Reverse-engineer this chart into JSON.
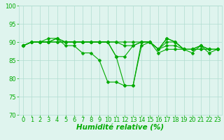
{
  "series": [
    {
      "x": [
        0,
        1,
        2,
        3,
        4,
        5,
        6,
        7,
        8,
        9,
        10,
        11,
        12,
        13,
        14,
        15,
        16,
        17,
        18,
        19,
        20,
        21,
        22,
        23
      ],
      "y": [
        89,
        90,
        90,
        91,
        91,
        89,
        89,
        87,
        87,
        85,
        79,
        79,
        78,
        78,
        89,
        90,
        87,
        88,
        88,
        88,
        88,
        88,
        88,
        88
      ]
    },
    {
      "x": [
        0,
        1,
        2,
        3,
        4,
        5,
        6,
        7,
        8,
        9,
        10,
        11,
        12,
        13,
        14,
        15,
        16,
        17,
        18,
        19,
        20,
        21,
        22,
        23
      ],
      "y": [
        89,
        90,
        90,
        90,
        90,
        90,
        90,
        90,
        90,
        90,
        90,
        86,
        86,
        89,
        90,
        90,
        88,
        91,
        90,
        88,
        88,
        88,
        88,
        88
      ]
    },
    {
      "x": [
        0,
        1,
        2,
        3,
        4,
        5,
        6,
        7,
        8,
        9,
        10,
        11,
        12,
        13,
        14,
        15,
        16,
        17,
        18,
        19,
        20,
        21,
        22,
        23
      ],
      "y": [
        89,
        90,
        90,
        90,
        91,
        90,
        90,
        90,
        90,
        90,
        90,
        90,
        89,
        89,
        90,
        90,
        88,
        90,
        90,
        88,
        87,
        89,
        88,
        88
      ]
    },
    {
      "x": [
        0,
        1,
        2,
        3,
        4,
        5,
        6,
        7,
        8,
        9,
        10,
        11,
        12,
        13,
        14,
        15,
        16,
        17,
        18,
        19,
        20,
        21,
        22,
        23
      ],
      "y": [
        89,
        90,
        90,
        90,
        90,
        90,
        90,
        90,
        90,
        90,
        90,
        90,
        90,
        90,
        90,
        90,
        88,
        89,
        89,
        88,
        88,
        89,
        87,
        88
      ]
    },
    {
      "x": [
        0,
        1,
        2,
        3,
        4,
        5,
        6,
        7,
        8,
        9,
        10,
        11,
        12,
        13,
        14,
        15,
        16,
        17,
        18,
        19,
        20,
        21,
        22,
        23
      ],
      "y": [
        89,
        90,
        90,
        90,
        91,
        90,
        90,
        90,
        90,
        90,
        90,
        86,
        78,
        78,
        90,
        90,
        88,
        91,
        90,
        88,
        88,
        89,
        88,
        88
      ]
    }
  ],
  "line_color": "#00aa00",
  "marker": "D",
  "marker_size": 2.5,
  "xlim": [
    -0.5,
    23.5
  ],
  "ylim": [
    70,
    100
  ],
  "yticks": [
    70,
    75,
    80,
    85,
    90,
    95,
    100
  ],
  "xticks": [
    0,
    1,
    2,
    3,
    4,
    5,
    6,
    7,
    8,
    9,
    10,
    11,
    12,
    13,
    14,
    15,
    16,
    17,
    18,
    19,
    20,
    21,
    22,
    23
  ],
  "xlabel": "Humidité relative (%)",
  "xlabel_color": "#00aa00",
  "xlabel_fontsize": 7.5,
  "tick_color": "#00aa00",
  "tick_fontsize": 6,
  "grid_color": "#b0ddd0",
  "background_color": "#dff4ee",
  "line_width": 0.8
}
